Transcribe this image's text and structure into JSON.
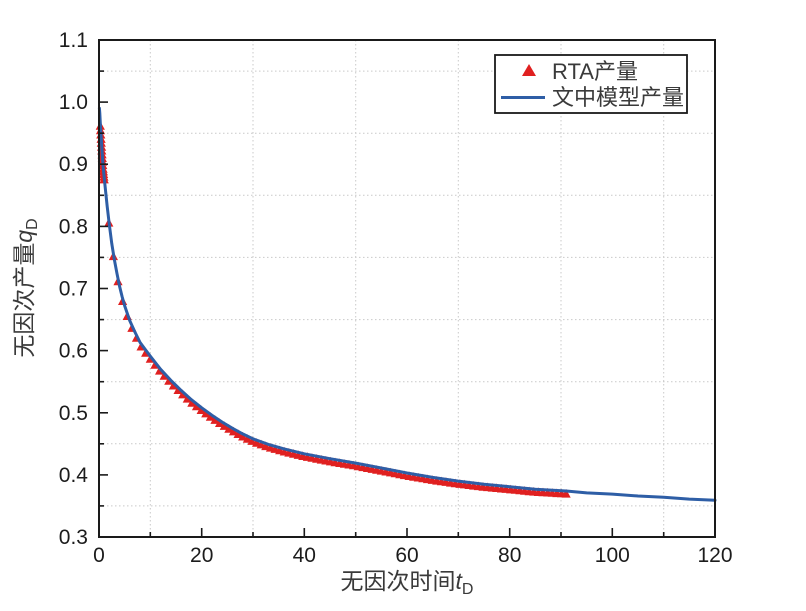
{
  "figure": {
    "background": "#ffffff",
    "frame_color": "#1a1a1a",
    "grid_color": "#c9c9c9"
  },
  "chart_data": {
    "type": "line",
    "title": "",
    "xlabel": {
      "text": "无因次时间",
      "var": "t",
      "sub": "D"
    },
    "ylabel": {
      "text": "无因次产量",
      "var": "q",
      "sub": "D"
    },
    "axes": {
      "x": {
        "min": 0,
        "max": 120,
        "major_ticks": [
          0,
          20,
          40,
          60,
          80,
          100,
          120
        ],
        "tick_labels": [
          "0",
          "20",
          "40",
          "60",
          "80",
          "100",
          "120"
        ],
        "minor_ticks": [
          10,
          30,
          50,
          70,
          90,
          110
        ]
      },
      "y": {
        "min": 0.3,
        "max": 1.1,
        "major_ticks": [
          0.3,
          0.4,
          0.5,
          0.6,
          0.7,
          0.8,
          0.9,
          1.0,
          1.1
        ],
        "tick_labels": [
          "0.3",
          "0.4",
          "0.5",
          "0.6",
          "0.7",
          "0.8",
          "0.9",
          "1.0",
          "1.1"
        ],
        "minor_ticks": [
          0.35,
          0.45,
          0.55,
          0.65,
          0.75,
          0.85,
          0.95,
          1.05
        ]
      }
    },
    "grid": {
      "style": "dotted",
      "at": "minor-ticks",
      "color": "#c9c9c9"
    },
    "legend": {
      "position": "top-right",
      "items": [
        {
          "label": "RTA产量",
          "type": "scatter",
          "marker": "triangle-up",
          "color": "#e02020"
        },
        {
          "label": "文中模型产量",
          "type": "line",
          "color": "#2e5ea6"
        }
      ]
    },
    "series": [
      {
        "name": "RTA产量",
        "type": "scatter",
        "marker": "triangle-up",
        "color": "#e02020",
        "t_segments": [
          [
            0.25,
            1.0,
            0.05
          ],
          [
            1.0,
            91.0,
            0.9
          ]
        ]
      },
      {
        "name": "文中模型产量",
        "type": "line",
        "color": "#2e5ea6",
        "points": [
          [
            0.08,
            0.99
          ],
          [
            0.15,
            0.982
          ],
          [
            0.25,
            0.966
          ],
          [
            0.4,
            0.945
          ],
          [
            0.6,
            0.92
          ],
          [
            0.8,
            0.897
          ],
          [
            1.0,
            0.88
          ],
          [
            1.3,
            0.855
          ],
          [
            1.6,
            0.832
          ],
          [
            2.0,
            0.803
          ],
          [
            2.5,
            0.772
          ],
          [
            3.0,
            0.746
          ],
          [
            3.5,
            0.724
          ],
          [
            4.0,
            0.704
          ],
          [
            4.5,
            0.687
          ],
          [
            5.0,
            0.672
          ],
          [
            6.0,
            0.648
          ],
          [
            7.0,
            0.63
          ],
          [
            8.0,
            0.613
          ],
          [
            9.0,
            0.602
          ],
          [
            10,
            0.591
          ],
          [
            12,
            0.57
          ],
          [
            14,
            0.552
          ],
          [
            16,
            0.536
          ],
          [
            18,
            0.521
          ],
          [
            20,
            0.508
          ],
          [
            22,
            0.496
          ],
          [
            24,
            0.485
          ],
          [
            26,
            0.475
          ],
          [
            28,
            0.466
          ],
          [
            30,
            0.458
          ],
          [
            33,
            0.449
          ],
          [
            36,
            0.442
          ],
          [
            40,
            0.434
          ],
          [
            45,
            0.426
          ],
          [
            50,
            0.419
          ],
          [
            55,
            0.411
          ],
          [
            60,
            0.403
          ],
          [
            65,
            0.396
          ],
          [
            70,
            0.39
          ],
          [
            75,
            0.385
          ],
          [
            80,
            0.381
          ],
          [
            85,
            0.377
          ],
          [
            91,
            0.374
          ],
          [
            95,
            0.371
          ],
          [
            100,
            0.369
          ],
          [
            105,
            0.366
          ],
          [
            110,
            0.364
          ],
          [
            115,
            0.361
          ],
          [
            120,
            0.359
          ]
        ]
      }
    ]
  }
}
